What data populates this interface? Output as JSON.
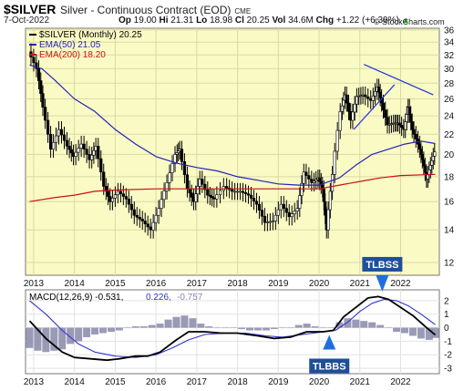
{
  "header": {
    "ticker": "$SILVER",
    "name": "Silver - Continuous Contract (EOD)",
    "exchange": "CME",
    "date": "7-Oct-2022",
    "open_label": "Op",
    "open": "19.00",
    "high_label": "Hi",
    "high": "21.31",
    "low_label": "Lo",
    "low": "18.98",
    "close_label": "Cl",
    "close": "20.25",
    "vol_label": "Vol",
    "vol": "34.6M",
    "chg_label": "Chg",
    "chg": "+1.22 (+6.39%)",
    "chg_arrow": "▲",
    "copyright": "© StockCharts.com"
  },
  "colors": {
    "plot_bg": "#fafac4",
    "price": "#000000",
    "ema50": "#2222bb",
    "ema200": "#cc1111",
    "trend": "#2233dd",
    "histogram": "#8888aa",
    "macd": "#000000",
    "signal": "#3333cc",
    "annotation_bg": "#1f4f9a"
  },
  "chart_data": [
    {
      "type": "candlestick",
      "legend": [
        {
          "label": "$SILVER (Monthly) 20.25",
          "color": "#000000"
        },
        {
          "label": "EMA(50) 21.05",
          "color": "#2222bb"
        },
        {
          "label": "EMA(200) 18.20",
          "color": "#cc1111"
        }
      ],
      "x_ticks": [
        "2013",
        "2014",
        "2015",
        "2016",
        "2017",
        "2018",
        "2019",
        "2020",
        "2021",
        "2022"
      ],
      "x_tick_positions": [
        2013,
        2014,
        2015,
        2016,
        2017,
        2018,
        2019,
        2020,
        2021,
        2022
      ],
      "xlim": [
        2012.8,
        2022.95
      ],
      "y_ticks": [
        12,
        14,
        16,
        18,
        20,
        22,
        24,
        26,
        28,
        30,
        32,
        34,
        36
      ],
      "ylim": [
        11.3,
        36.3
      ],
      "y_scale": "log",
      "price_series": [
        {
          "t": 2012.9,
          "v": 32.5
        },
        {
          "t": 2013.1,
          "v": 30.0
        },
        {
          "t": 2013.25,
          "v": 25.0
        },
        {
          "t": 2013.45,
          "v": 20.5
        },
        {
          "t": 2013.65,
          "v": 22.5
        },
        {
          "t": 2013.85,
          "v": 20.8
        },
        {
          "t": 2014.0,
          "v": 19.8
        },
        {
          "t": 2014.2,
          "v": 21.0
        },
        {
          "t": 2014.4,
          "v": 19.5
        },
        {
          "t": 2014.55,
          "v": 20.8
        },
        {
          "t": 2014.75,
          "v": 17.2
        },
        {
          "t": 2014.9,
          "v": 16.0
        },
        {
          "t": 2015.1,
          "v": 16.8
        },
        {
          "t": 2015.3,
          "v": 16.2
        },
        {
          "t": 2015.5,
          "v": 15.0
        },
        {
          "t": 2015.7,
          "v": 14.6
        },
        {
          "t": 2015.9,
          "v": 14.0
        },
        {
          "t": 2016.1,
          "v": 15.5
        },
        {
          "t": 2016.3,
          "v": 17.5
        },
        {
          "t": 2016.5,
          "v": 20.0
        },
        {
          "t": 2016.6,
          "v": 20.5
        },
        {
          "t": 2016.8,
          "v": 17.0
        },
        {
          "t": 2016.95,
          "v": 16.0
        },
        {
          "t": 2017.1,
          "v": 17.8
        },
        {
          "t": 2017.3,
          "v": 16.5
        },
        {
          "t": 2017.45,
          "v": 16.2
        },
        {
          "t": 2017.7,
          "v": 17.2
        },
        {
          "t": 2017.9,
          "v": 16.8
        },
        {
          "t": 2018.1,
          "v": 16.8
        },
        {
          "t": 2018.3,
          "v": 16.5
        },
        {
          "t": 2018.5,
          "v": 15.8
        },
        {
          "t": 2018.7,
          "v": 14.5
        },
        {
          "t": 2018.9,
          "v": 14.6
        },
        {
          "t": 2019.1,
          "v": 15.8
        },
        {
          "t": 2019.3,
          "v": 14.9
        },
        {
          "t": 2019.5,
          "v": 15.5
        },
        {
          "t": 2019.65,
          "v": 18.4
        },
        {
          "t": 2019.85,
          "v": 17.5
        },
        {
          "t": 2020.0,
          "v": 17.9
        },
        {
          "t": 2020.1,
          "v": 17.0
        },
        {
          "t": 2020.2,
          "v": 14.0
        },
        {
          "t": 2020.35,
          "v": 18.2
        },
        {
          "t": 2020.55,
          "v": 24.5
        },
        {
          "t": 2020.65,
          "v": 26.5
        },
        {
          "t": 2020.8,
          "v": 23.5
        },
        {
          "t": 2020.95,
          "v": 26.3
        },
        {
          "t": 2021.1,
          "v": 26.5
        },
        {
          "t": 2021.3,
          "v": 25.8
        },
        {
          "t": 2021.45,
          "v": 27.5
        },
        {
          "t": 2021.55,
          "v": 25.5
        },
        {
          "t": 2021.7,
          "v": 23.0
        },
        {
          "t": 2021.85,
          "v": 23.2
        },
        {
          "t": 2021.95,
          "v": 23.2
        },
        {
          "t": 2022.1,
          "v": 22.5
        },
        {
          "t": 2022.2,
          "v": 25.0
        },
        {
          "t": 2022.3,
          "v": 22.5
        },
        {
          "t": 2022.45,
          "v": 21.0
        },
        {
          "t": 2022.55,
          "v": 19.5
        },
        {
          "t": 2022.65,
          "v": 17.8
        },
        {
          "t": 2022.75,
          "v": 19.0
        },
        {
          "t": 2022.85,
          "v": 20.25
        }
      ],
      "ema50": [
        {
          "t": 2012.9,
          "v": 30.5
        },
        {
          "t": 2013.2,
          "v": 30.0
        },
        {
          "t": 2013.5,
          "v": 28.5
        },
        {
          "t": 2014.0,
          "v": 26.0
        },
        {
          "t": 2014.5,
          "v": 24.5
        },
        {
          "t": 2015.0,
          "v": 22.5
        },
        {
          "t": 2015.5,
          "v": 21.0
        },
        {
          "t": 2016.0,
          "v": 19.8
        },
        {
          "t": 2016.5,
          "v": 19.2
        },
        {
          "t": 2017.0,
          "v": 18.8
        },
        {
          "t": 2017.5,
          "v": 18.5
        },
        {
          "t": 2018.0,
          "v": 18.0
        },
        {
          "t": 2018.5,
          "v": 17.7
        },
        {
          "t": 2019.0,
          "v": 17.4
        },
        {
          "t": 2019.5,
          "v": 17.3
        },
        {
          "t": 2020.0,
          "v": 17.3
        },
        {
          "t": 2020.5,
          "v": 17.9
        },
        {
          "t": 2020.9,
          "v": 19.0
        },
        {
          "t": 2021.3,
          "v": 20.0
        },
        {
          "t": 2021.7,
          "v": 20.5
        },
        {
          "t": 2022.1,
          "v": 21.0
        },
        {
          "t": 2022.5,
          "v": 21.3
        },
        {
          "t": 2022.85,
          "v": 21.05
        }
      ],
      "ema200": [
        {
          "t": 2012.9,
          "v": 16.0
        },
        {
          "t": 2013.5,
          "v": 16.3
        },
        {
          "t": 2014.0,
          "v": 16.5
        },
        {
          "t": 2014.5,
          "v": 16.8
        },
        {
          "t": 2015.0,
          "v": 16.9
        },
        {
          "t": 2016.0,
          "v": 17.0
        },
        {
          "t": 2017.0,
          "v": 17.0
        },
        {
          "t": 2018.0,
          "v": 17.0
        },
        {
          "t": 2019.0,
          "v": 17.0
        },
        {
          "t": 2020.0,
          "v": 17.0
        },
        {
          "t": 2020.5,
          "v": 17.3
        },
        {
          "t": 2021.0,
          "v": 17.6
        },
        {
          "t": 2021.5,
          "v": 17.9
        },
        {
          "t": 2022.0,
          "v": 18.1
        },
        {
          "t": 2022.85,
          "v": 18.2
        }
      ],
      "trendlines": [
        {
          "from": {
            "t": 2021.1,
            "v": 30.6
          },
          "to": {
            "t": 2022.8,
            "v": 26.5
          }
        },
        {
          "from": {
            "t": 2020.85,
            "v": 22.5
          },
          "to": {
            "t": 2021.85,
            "v": 27.8
          }
        }
      ]
    },
    {
      "type": "line",
      "legend": [
        {
          "label": "MACD(12,26,9) -0.531,",
          "color": "#000000"
        },
        {
          "label": "0.226,",
          "color": "#3333cc"
        },
        {
          "label": "-0.757",
          "color": "#8888aa"
        }
      ],
      "x_ticks": [
        "2013",
        "2014",
        "2015",
        "2016",
        "2017",
        "2018",
        "2019",
        "2020",
        "2021",
        "2022"
      ],
      "x_tick_positions": [
        2013,
        2014,
        2015,
        2016,
        2017,
        2018,
        2019,
        2020,
        2021,
        2022
      ],
      "xlim": [
        2012.8,
        2022.95
      ],
      "y_ticks": [
        -3,
        -2,
        -1,
        0,
        1,
        2
      ],
      "ylim": [
        -3.4,
        2.8
      ],
      "macd": [
        {
          "t": 2012.9,
          "v": 0.5
        },
        {
          "t": 2013.3,
          "v": -0.8
        },
        {
          "t": 2013.7,
          "v": -1.8
        },
        {
          "t": 2014.0,
          "v": -2.2
        },
        {
          "t": 2014.4,
          "v": -2.3
        },
        {
          "t": 2014.8,
          "v": -2.4
        },
        {
          "t": 2015.1,
          "v": -2.3
        },
        {
          "t": 2015.5,
          "v": -2.1
        },
        {
          "t": 2015.8,
          "v": -2.1
        },
        {
          "t": 2016.1,
          "v": -1.8
        },
        {
          "t": 2016.5,
          "v": -0.9
        },
        {
          "t": 2016.8,
          "v": -0.3
        },
        {
          "t": 2017.2,
          "v": -0.3
        },
        {
          "t": 2017.6,
          "v": -0.4
        },
        {
          "t": 2018.0,
          "v": -0.4
        },
        {
          "t": 2018.5,
          "v": -0.6
        },
        {
          "t": 2018.9,
          "v": -0.8
        },
        {
          "t": 2019.3,
          "v": -0.7
        },
        {
          "t": 2019.7,
          "v": -0.3
        },
        {
          "t": 2020.1,
          "v": -0.3
        },
        {
          "t": 2020.35,
          "v": -0.2
        },
        {
          "t": 2020.6,
          "v": 0.8
        },
        {
          "t": 2020.9,
          "v": 1.5
        },
        {
          "t": 2021.2,
          "v": 2.2
        },
        {
          "t": 2021.45,
          "v": 2.3
        },
        {
          "t": 2021.7,
          "v": 2.1
        },
        {
          "t": 2022.0,
          "v": 1.5
        },
        {
          "t": 2022.3,
          "v": 0.9
        },
        {
          "t": 2022.6,
          "v": 0.1
        },
        {
          "t": 2022.85,
          "v": -0.531
        }
      ],
      "signal": [
        {
          "t": 2012.9,
          "v": 2.0
        },
        {
          "t": 2013.3,
          "v": 1.0
        },
        {
          "t": 2013.7,
          "v": -0.2
        },
        {
          "t": 2014.1,
          "v": -1.2
        },
        {
          "t": 2014.5,
          "v": -1.8
        },
        {
          "t": 2015.0,
          "v": -2.1
        },
        {
          "t": 2015.5,
          "v": -2.2
        },
        {
          "t": 2016.0,
          "v": -2.0
        },
        {
          "t": 2016.4,
          "v": -1.5
        },
        {
          "t": 2016.8,
          "v": -0.9
        },
        {
          "t": 2017.2,
          "v": -0.5
        },
        {
          "t": 2017.7,
          "v": -0.4
        },
        {
          "t": 2018.2,
          "v": -0.4
        },
        {
          "t": 2018.7,
          "v": -0.6
        },
        {
          "t": 2019.1,
          "v": -0.7
        },
        {
          "t": 2019.6,
          "v": -0.5
        },
        {
          "t": 2020.0,
          "v": -0.35
        },
        {
          "t": 2020.4,
          "v": -0.2
        },
        {
          "t": 2020.7,
          "v": 0.4
        },
        {
          "t": 2021.0,
          "v": 1.2
        },
        {
          "t": 2021.3,
          "v": 1.8
        },
        {
          "t": 2021.6,
          "v": 2.1
        },
        {
          "t": 2021.9,
          "v": 2.0
        },
        {
          "t": 2022.2,
          "v": 1.6
        },
        {
          "t": 2022.5,
          "v": 1.0
        },
        {
          "t": 2022.85,
          "v": 0.226
        }
      ],
      "histogram": [
        {
          "t": 2012.9,
          "v": -1.5
        },
        {
          "t": 2013.1,
          "v": -1.7
        },
        {
          "t": 2013.3,
          "v": -1.8
        },
        {
          "t": 2013.5,
          "v": -1.7
        },
        {
          "t": 2013.7,
          "v": -1.6
        },
        {
          "t": 2013.9,
          "v": -1.2
        },
        {
          "t": 2014.1,
          "v": -1.0
        },
        {
          "t": 2014.3,
          "v": -0.7
        },
        {
          "t": 2014.5,
          "v": -0.5
        },
        {
          "t": 2014.7,
          "v": -0.4
        },
        {
          "t": 2014.9,
          "v": -0.3
        },
        {
          "t": 2015.1,
          "v": -0.2
        },
        {
          "t": 2015.3,
          "v": 0.0
        },
        {
          "t": 2015.5,
          "v": 0.1
        },
        {
          "t": 2015.7,
          "v": 0.1
        },
        {
          "t": 2015.9,
          "v": 0.2
        },
        {
          "t": 2016.1,
          "v": 0.3
        },
        {
          "t": 2016.3,
          "v": 0.6
        },
        {
          "t": 2016.5,
          "v": 0.8
        },
        {
          "t": 2016.7,
          "v": 0.9
        },
        {
          "t": 2016.9,
          "v": 0.7
        },
        {
          "t": 2017.1,
          "v": 0.3
        },
        {
          "t": 2017.3,
          "v": 0.1
        },
        {
          "t": 2017.5,
          "v": 0.0
        },
        {
          "t": 2017.7,
          "v": 0.0
        },
        {
          "t": 2017.9,
          "v": 0.0
        },
        {
          "t": 2018.1,
          "v": -0.1
        },
        {
          "t": 2018.3,
          "v": -0.2
        },
        {
          "t": 2018.5,
          "v": -0.2
        },
        {
          "t": 2018.7,
          "v": -0.2
        },
        {
          "t": 2018.9,
          "v": -0.1
        },
        {
          "t": 2019.1,
          "v": 0.0
        },
        {
          "t": 2019.3,
          "v": 0.0
        },
        {
          "t": 2019.5,
          "v": 0.2
        },
        {
          "t": 2019.7,
          "v": 0.3
        },
        {
          "t": 2019.9,
          "v": 0.1
        },
        {
          "t": 2020.1,
          "v": 0.0
        },
        {
          "t": 2020.3,
          "v": 0.0
        },
        {
          "t": 2020.5,
          "v": 0.4
        },
        {
          "t": 2020.7,
          "v": 0.7
        },
        {
          "t": 2020.9,
          "v": 0.6
        },
        {
          "t": 2021.1,
          "v": 0.5
        },
        {
          "t": 2021.3,
          "v": 0.4
        },
        {
          "t": 2021.5,
          "v": 0.2
        },
        {
          "t": 2021.7,
          "v": 0.0
        },
        {
          "t": 2021.9,
          "v": -0.3
        },
        {
          "t": 2022.1,
          "v": -0.4
        },
        {
          "t": 2022.3,
          "v": -0.6
        },
        {
          "t": 2022.5,
          "v": -0.8
        },
        {
          "t": 2022.7,
          "v": -0.9
        },
        {
          "t": 2022.85,
          "v": -0.757
        }
      ],
      "annotations": [
        {
          "text": "TLBSS",
          "t": 2021.55,
          "v": 2.4,
          "direction": "down"
        },
        {
          "text": "TLBBS",
          "t": 2020.25,
          "v": -0.4,
          "direction": "up"
        }
      ]
    }
  ]
}
